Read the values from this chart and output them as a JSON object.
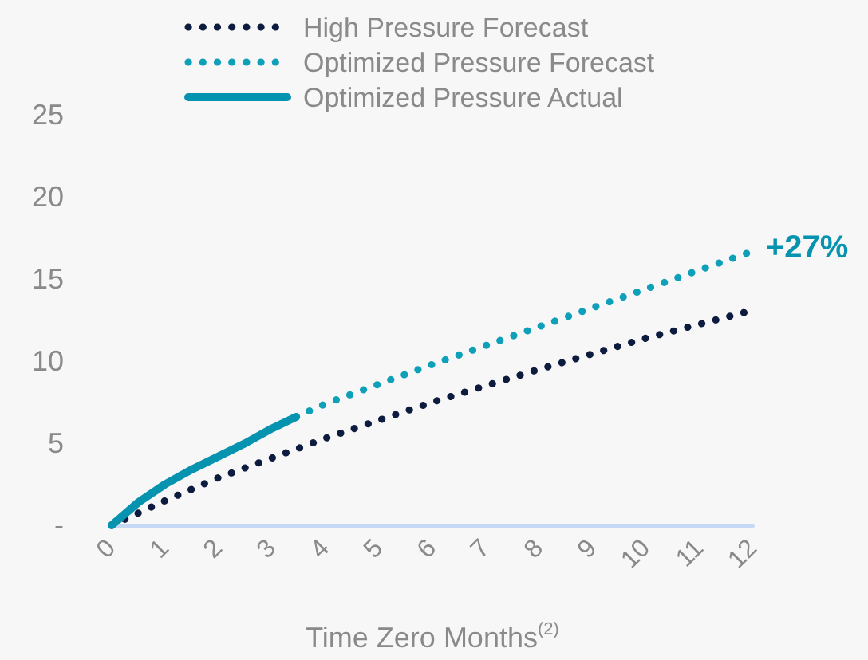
{
  "chart_data": {
    "type": "line",
    "xlabel": "Time Zero Months$^{(2)}$",
    "xlim": [
      0,
      12
    ],
    "xticks": [
      0,
      1,
      2,
      3,
      4,
      5,
      6,
      7,
      8,
      9,
      10,
      11,
      12
    ],
    "ylim": [
      0,
      25
    ],
    "yticks": [
      {
        "value": 0,
        "label": "-"
      },
      5,
      10,
      15,
      20,
      25
    ],
    "grid": false,
    "legend": "top",
    "marker": "none",
    "series": [
      {
        "name": "High Pressure Forecast",
        "color": "#0d1b3e",
        "line_style": "dotted",
        "x": [
          0,
          1,
          2,
          3,
          4,
          6,
          8,
          10,
          12
        ],
        "values": [
          0,
          1.5,
          2.9,
          4.1,
          5.3,
          7.5,
          9.5,
          11.4,
          13.1
        ]
      },
      {
        "name": "Optimized Pressure Forecast",
        "color": "#0ea0b8",
        "line_style": "dotted",
        "x": [
          3.45,
          4,
          6,
          8,
          10,
          12
        ],
        "values": [
          6.6,
          7.4,
          9.8,
          12.1,
          14.4,
          16.7
        ]
      },
      {
        "name": "Optimized Pressure Actual",
        "color": "#0693b0",
        "line_style": "solid",
        "x": [
          0,
          0.5,
          1,
          1.5,
          2,
          2.5,
          3,
          3.45
        ],
        "values": [
          0,
          1.4,
          2.5,
          3.4,
          4.2,
          5.0,
          5.9,
          6.6
        ]
      }
    ],
    "annotations": [
      {
        "text": "+27%",
        "x": 12,
        "y": 16.7
      }
    ]
  }
}
